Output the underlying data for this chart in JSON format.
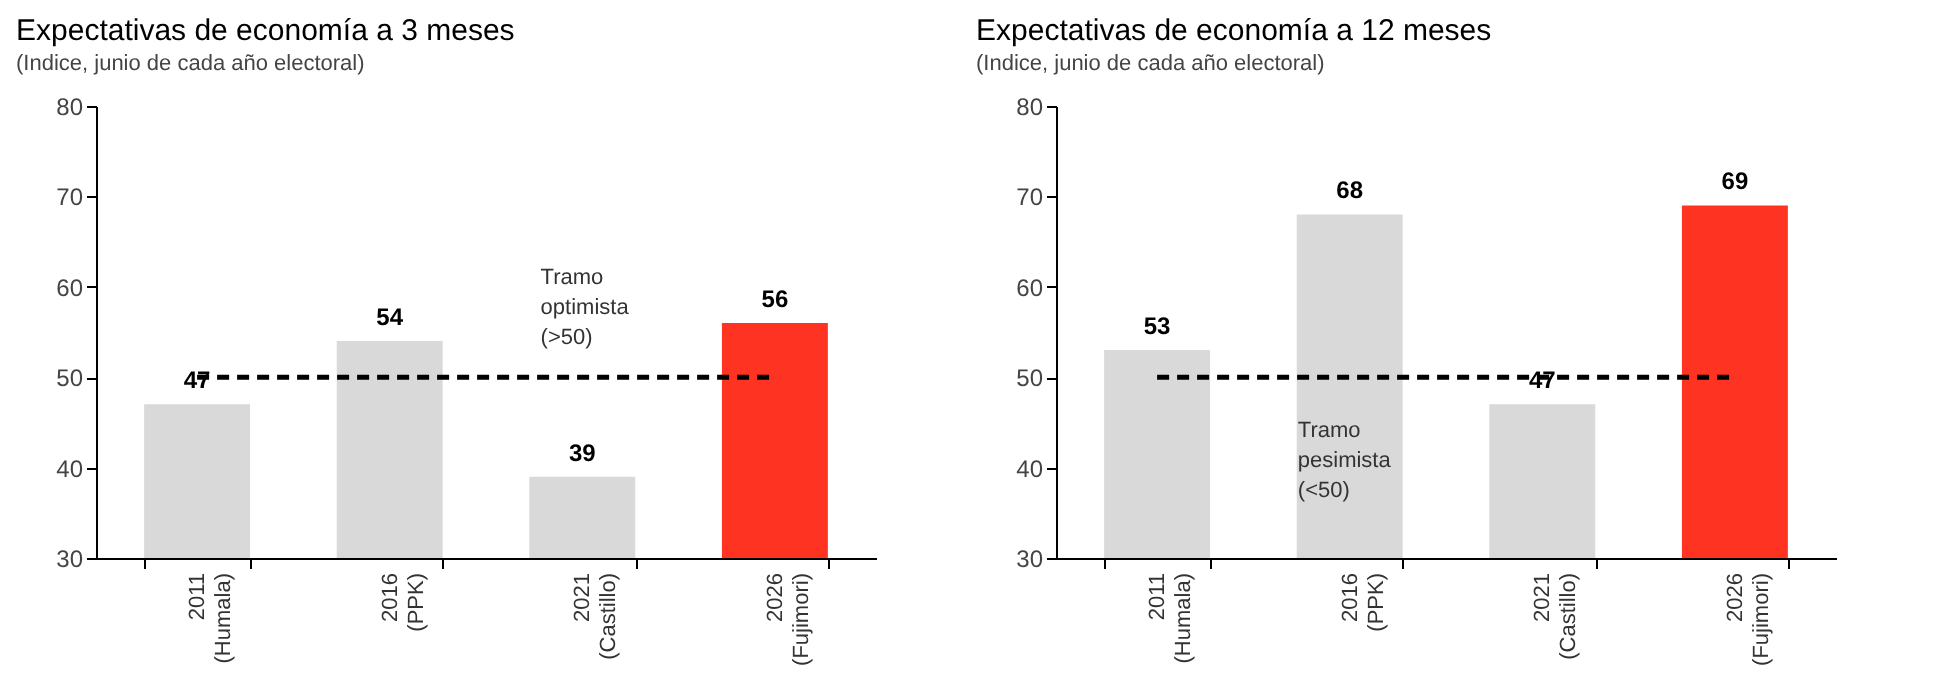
{
  "chart_data": [
    {
      "type": "bar",
      "title": "Expectativas de economía a 3 meses",
      "subtitle": "(Indice, junio de cada año electoral)",
      "categories": [
        "2011\n(Humala)",
        "2016\n(PPK)",
        "2021\n(Castillo)",
        "2026\n(Fujimori)"
      ],
      "values": [
        47,
        54,
        39,
        56
      ],
      "colors": [
        "#d9d9d9",
        "#d9d9d9",
        "#d9d9d9",
        "#ff3322"
      ],
      "data_labels": true,
      "ylim": [
        30,
        80
      ],
      "yticks": [
        30,
        40,
        50,
        60,
        70,
        80
      ],
      "grid": false,
      "legend": false,
      "ref_lines": [
        {
          "axis": "y",
          "value": 50,
          "color": "#000000",
          "line_style": "dashed"
        }
      ],
      "annotations": [
        "Tramo\noptimista\n(>50)"
      ]
    },
    {
      "type": "bar",
      "title": "Expectativas de economía a 12 meses",
      "subtitle": "(Indice, junio de cada año electoral)",
      "categories": [
        "2011\n(Humala)",
        "2016\n(PPK)",
        "2021\n(Castillo)",
        "2026\n(Fujimori)"
      ],
      "values": [
        53,
        68,
        47,
        69
      ],
      "colors": [
        "#d9d9d9",
        "#d9d9d9",
        "#d9d9d9",
        "#ff3322"
      ],
      "data_labels": true,
      "ylim": [
        30,
        80
      ],
      "yticks": [
        30,
        40,
        50,
        60,
        70,
        80
      ],
      "grid": false,
      "legend": false,
      "ref_lines": [
        {
          "axis": "y",
          "value": 50,
          "color": "#000000",
          "line_style": "dashed"
        }
      ],
      "annotations": [
        "Tramo\npesimista\n(<50)"
      ]
    }
  ]
}
